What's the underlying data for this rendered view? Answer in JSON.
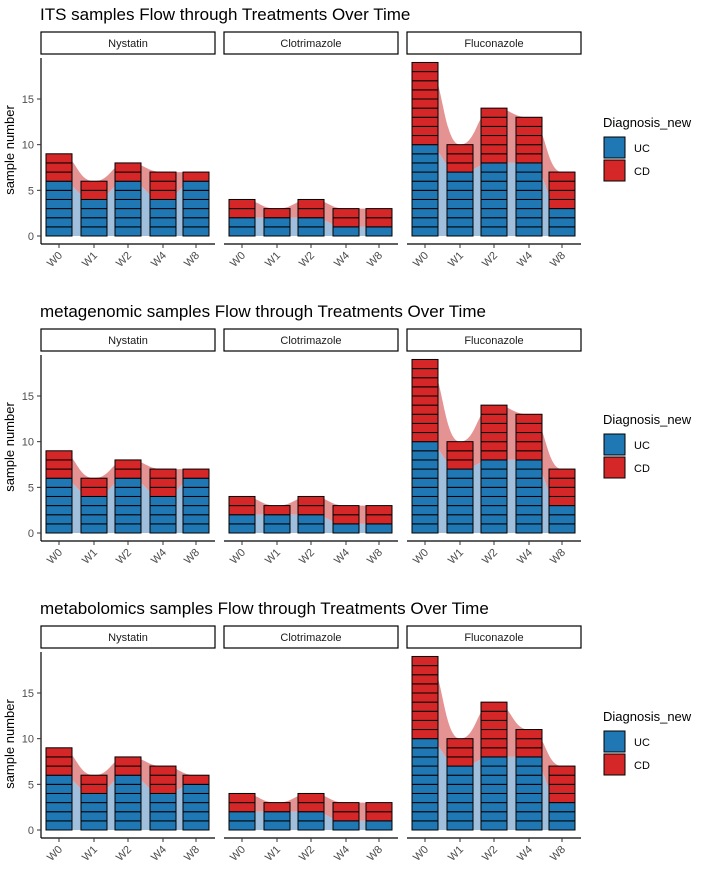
{
  "legend": {
    "title": "Diagnosis_new",
    "entries": [
      {
        "name": "UC",
        "color": "#1F77B4"
      },
      {
        "name": "CD",
        "color": "#D62728"
      }
    ]
  },
  "colors": {
    "UC": "#1F77B4",
    "CD": "#D62728",
    "UC_flow": "#8FB4D6",
    "CD_flow": "#E07F80"
  },
  "chart_data": [
    {
      "type": "bar",
      "stacked": true,
      "title": "ITS samples Flow through Treatments Over Time",
      "ylabel": "sample number",
      "ylim": [
        0,
        20
      ],
      "yticks": [
        0,
        5,
        10,
        15
      ],
      "categories": [
        "W0",
        "W1",
        "W2",
        "W4",
        "W8"
      ],
      "panels": [
        {
          "name": "Nystatin",
          "series": [
            {
              "name": "UC",
              "values": [
                6,
                4,
                6,
                4,
                6
              ]
            },
            {
              "name": "CD",
              "values": [
                3,
                2,
                2,
                3,
                1
              ]
            }
          ]
        },
        {
          "name": "Clotrimazole",
          "series": [
            {
              "name": "UC",
              "values": [
                2,
                2,
                2,
                1,
                1
              ]
            },
            {
              "name": "CD",
              "values": [
                2,
                1,
                2,
                2,
                2
              ]
            }
          ]
        },
        {
          "name": "Fluconazole",
          "series": [
            {
              "name": "UC",
              "values": [
                10,
                7,
                8,
                8,
                3
              ]
            },
            {
              "name": "CD",
              "values": [
                9,
                3,
                6,
                5,
                4
              ]
            }
          ]
        }
      ]
    },
    {
      "type": "bar",
      "stacked": true,
      "title": "metagenomic samples Flow through Treatments Over Time",
      "ylabel": "sample number",
      "ylim": [
        0,
        20
      ],
      "yticks": [
        0,
        5,
        10,
        15
      ],
      "categories": [
        "W0",
        "W1",
        "W2",
        "W4",
        "W8"
      ],
      "panels": [
        {
          "name": "Nystatin",
          "series": [
            {
              "name": "UC",
              "values": [
                6,
                4,
                6,
                4,
                6
              ]
            },
            {
              "name": "CD",
              "values": [
                3,
                2,
                2,
                3,
                1
              ]
            }
          ]
        },
        {
          "name": "Clotrimazole",
          "series": [
            {
              "name": "UC",
              "values": [
                2,
                2,
                2,
                1,
                1
              ]
            },
            {
              "name": "CD",
              "values": [
                2,
                1,
                2,
                2,
                2
              ]
            }
          ]
        },
        {
          "name": "Fluconazole",
          "series": [
            {
              "name": "UC",
              "values": [
                10,
                7,
                8,
                8,
                3
              ]
            },
            {
              "name": "CD",
              "values": [
                9,
                3,
                6,
                5,
                4
              ]
            }
          ]
        }
      ]
    },
    {
      "type": "bar",
      "stacked": true,
      "title": "metabolomics samples Flow through Treatments Over Time",
      "ylabel": "sample number",
      "ylim": [
        0,
        20
      ],
      "yticks": [
        0,
        5,
        10,
        15
      ],
      "categories": [
        "W0",
        "W1",
        "W2",
        "W4",
        "W8"
      ],
      "panels": [
        {
          "name": "Nystatin",
          "series": [
            {
              "name": "UC",
              "values": [
                6,
                4,
                6,
                4,
                5
              ]
            },
            {
              "name": "CD",
              "values": [
                3,
                2,
                2,
                3,
                1
              ]
            }
          ]
        },
        {
          "name": "Clotrimazole",
          "series": [
            {
              "name": "UC",
              "values": [
                2,
                2,
                2,
                1,
                1
              ]
            },
            {
              "name": "CD",
              "values": [
                2,
                1,
                2,
                2,
                2
              ]
            }
          ]
        },
        {
          "name": "Fluconazole",
          "series": [
            {
              "name": "UC",
              "values": [
                10,
                7,
                8,
                8,
                3
              ]
            },
            {
              "name": "CD",
              "values": [
                9,
                3,
                6,
                3,
                4
              ]
            }
          ]
        }
      ]
    }
  ]
}
